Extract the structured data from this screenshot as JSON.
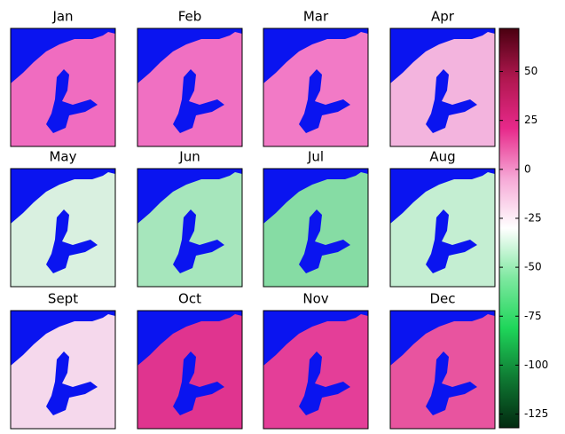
{
  "chart_data": {
    "type": "map-grid",
    "panels": [
      "Jan",
      "Feb",
      "Mar",
      "Apr",
      "May",
      "Jun",
      "Jul",
      "Aug",
      "Sept",
      "Oct",
      "Nov",
      "Dec"
    ],
    "panel_colors": [
      "#f06cc0",
      "#f070c2",
      "#f27ac6",
      "#f3b4de",
      "#d9f0e0",
      "#a6e6bc",
      "#86dca4",
      "#c4eed2",
      "#f5d8ec",
      "#e0348f",
      "#e43e98",
      "#e8549f"
    ],
    "background_color": "#0a14f0",
    "colorbar_colors": [
      "#4a0010",
      "#b0174f",
      "#e7298a",
      "#f6a8d6",
      "#ffffff",
      "#7ee8a0",
      "#1fd65a",
      "#0f7a33",
      "#022a10"
    ],
    "zlim": [
      -132,
      72
    ],
    "zticks": [
      50,
      25,
      0,
      -25,
      -50,
      -75,
      -100,
      -125
    ]
  }
}
